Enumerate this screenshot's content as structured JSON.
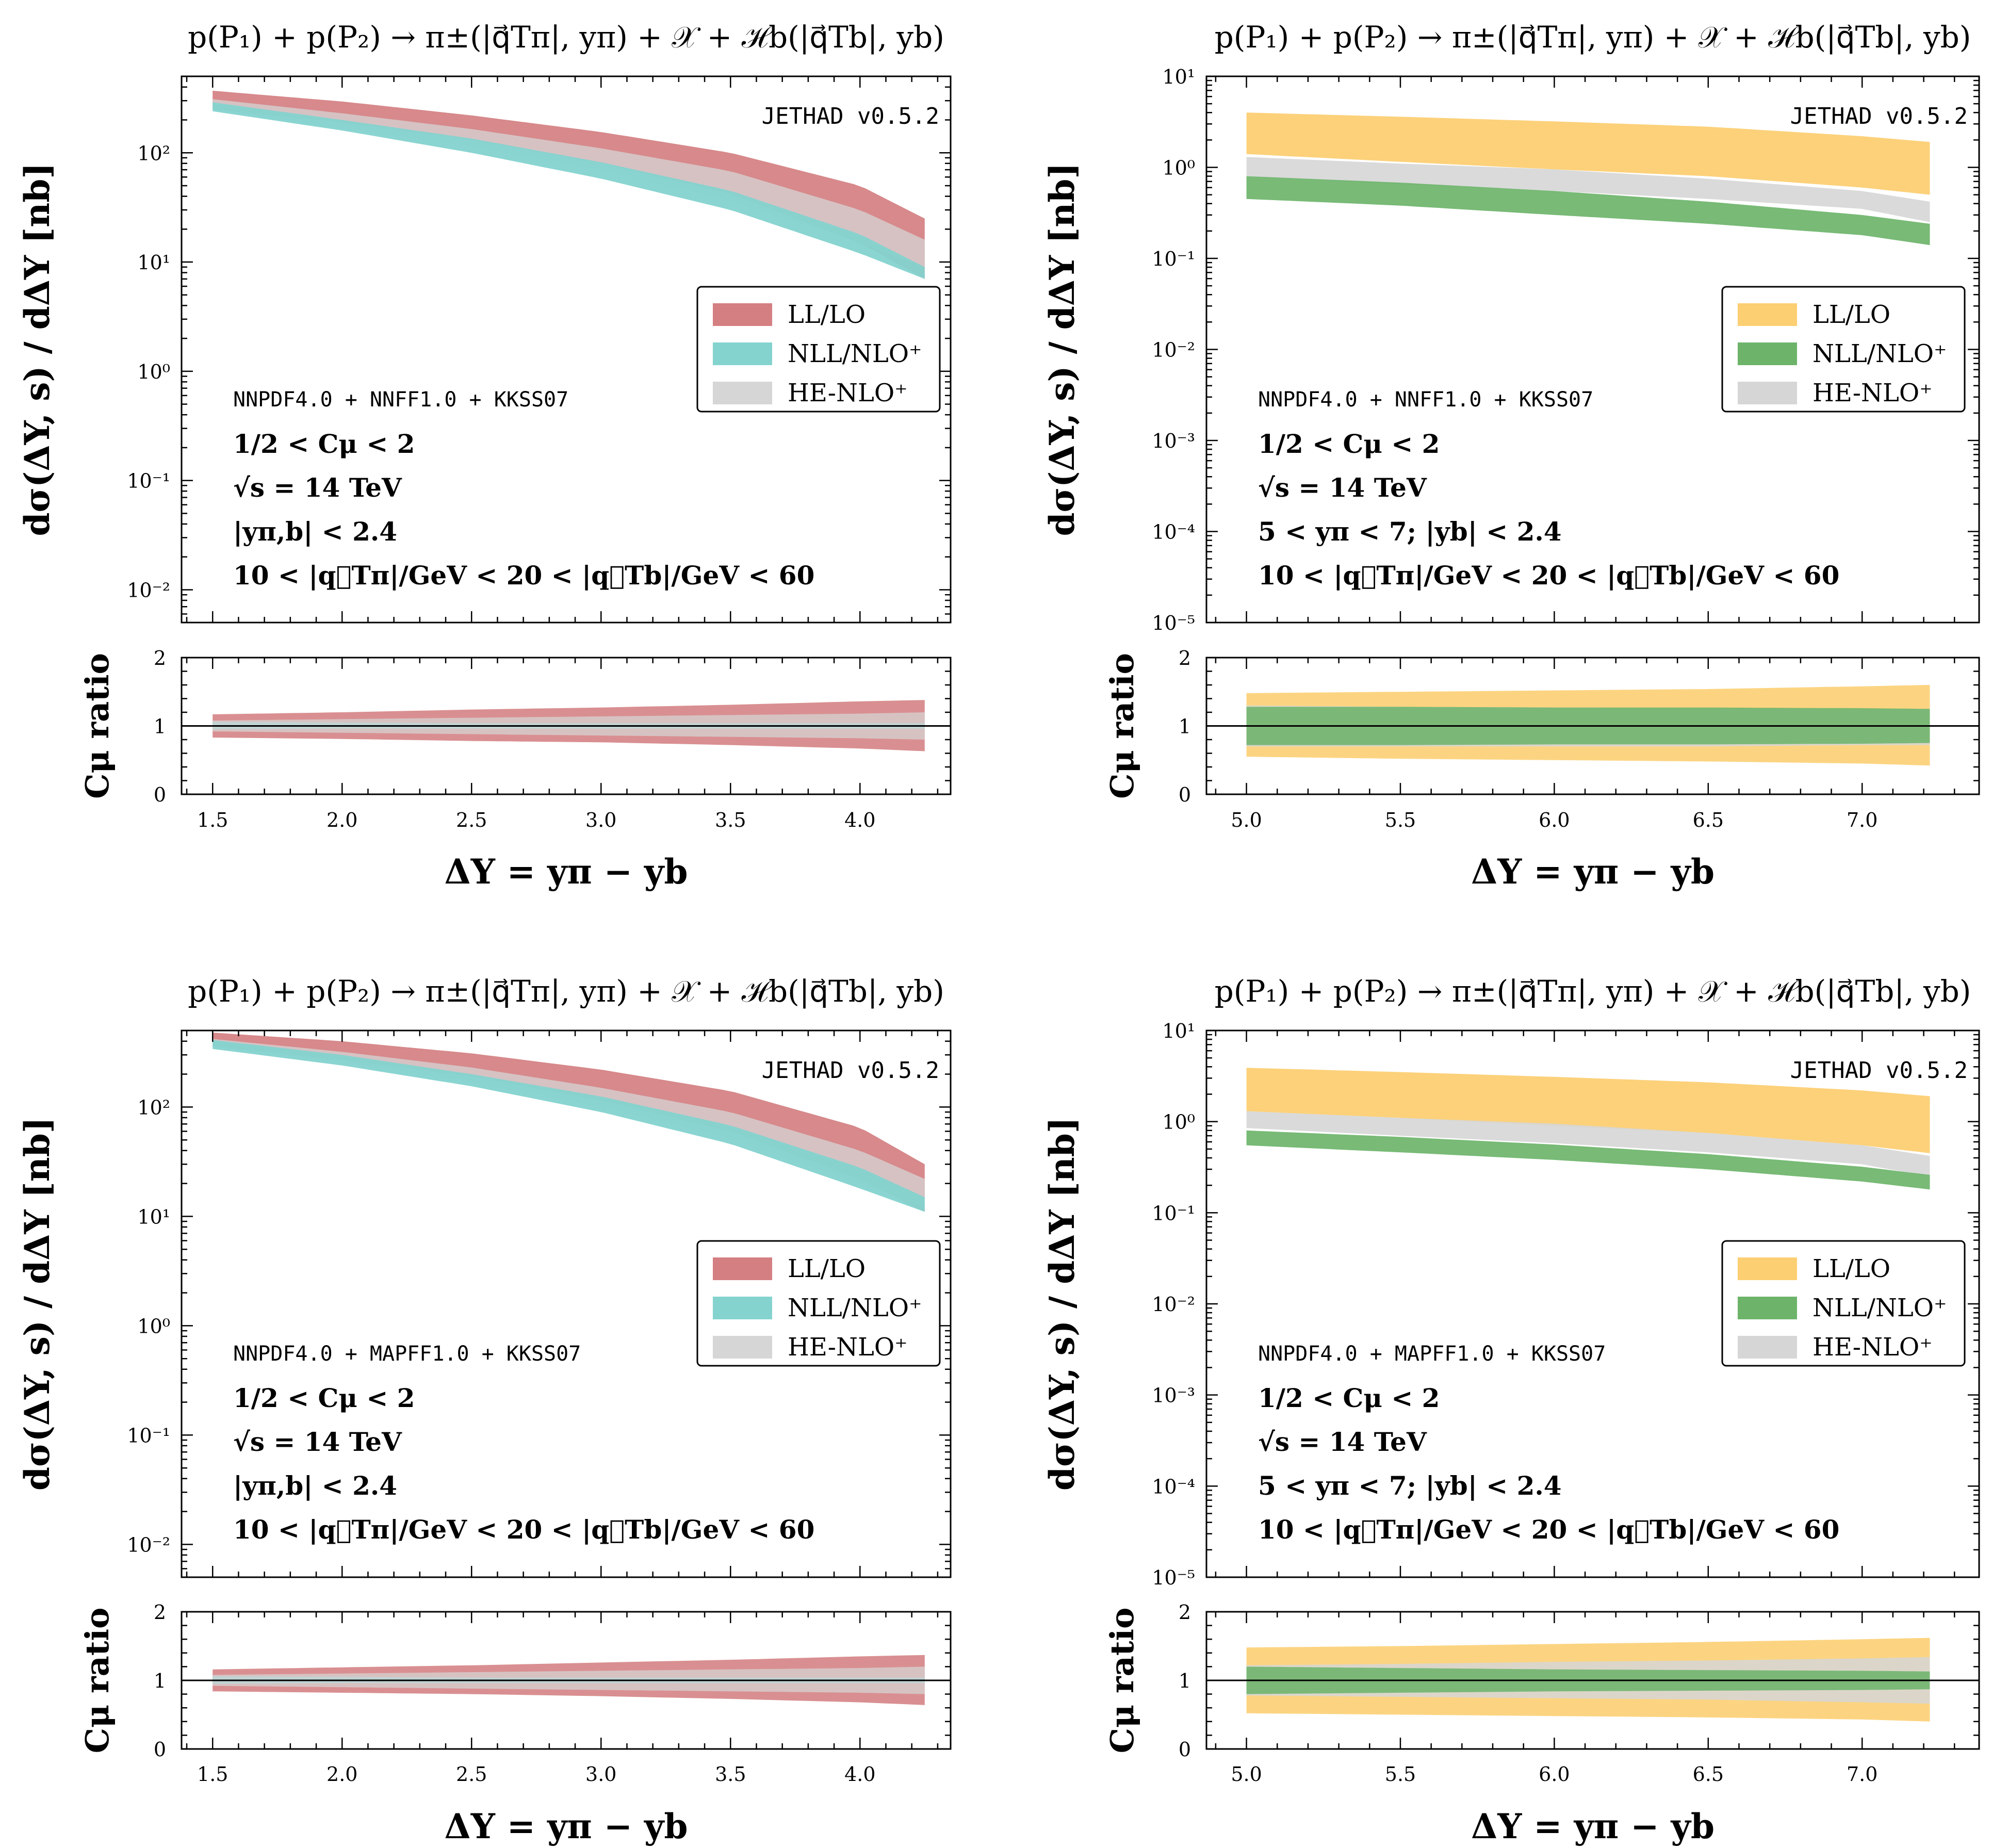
{
  "figure": {
    "panels": [
      {
        "id": "tl",
        "title": "p(P₁) + p(P₂) → π±(|q⃗Tπ|, yπ) + 𝒳 + ℋb(|q⃗Tb|, yb)",
        "watermark": "JETHAD v0.5.2",
        "pdf_label": "NNPDF4.0 + NNFF1.0 + KKSS07",
        "cuts": [
          "1/2 < Cμ < 2",
          "√s = 14 TeV",
          "|yπ,b| < 2.4",
          "10 < |q⃗Tπ|/GeV < 20 < |q⃗Tb|/GeV < 60"
        ],
        "ylabel_main": "dσ(ΔY, s) / dΔY [nb]",
        "ylabel_ratio": "Cμ ratio",
        "xlabel": "ΔY = yπ − yb",
        "legend": [
          "LL/LO",
          "NLL/NLO⁺",
          "HE-NLO⁺"
        ],
        "ytick_labels": [
          "10⁻²",
          "10⁻¹",
          "10⁰",
          "10¹",
          "10²"
        ],
        "ratio_tick_labels": [
          "0",
          "1",
          "2"
        ],
        "xtick_labels": [
          "1.5",
          "2.0",
          "2.5",
          "3.0",
          "3.5",
          "4.0"
        ]
      },
      {
        "id": "tr",
        "title": "p(P₁) + p(P₂) → π±(|q⃗Tπ|, yπ) + 𝒳 + ℋb(|q⃗Tb|, yb)",
        "watermark": "JETHAD v0.5.2",
        "pdf_label": "NNPDF4.0 + NNFF1.0 + KKSS07",
        "cuts": [
          "1/2 < Cμ < 2",
          "√s = 14 TeV",
          "5 < yπ < 7;  |yb| < 2.4",
          "10 < |q⃗Tπ|/GeV < 20 < |q⃗Tb|/GeV < 60"
        ],
        "ylabel_main": "dσ(ΔY, s) / dΔY [nb]",
        "ylabel_ratio": "Cμ ratio",
        "xlabel": "ΔY = yπ − yb",
        "legend": [
          "LL/LO",
          "NLL/NLO⁺",
          "HE-NLO⁺"
        ],
        "ytick_labels": [
          "10⁻⁵",
          "10⁻⁴",
          "10⁻³",
          "10⁻²",
          "10⁻¹",
          "10⁰",
          "10¹"
        ],
        "ratio_tick_labels": [
          "0",
          "1",
          "2"
        ],
        "xtick_labels": [
          "5.0",
          "5.5",
          "6.0",
          "6.5",
          "7.0"
        ]
      },
      {
        "id": "bl",
        "title": "p(P₁) + p(P₂) → π±(|q⃗Tπ|, yπ) + 𝒳 + ℋb(|q⃗Tb|, yb)",
        "watermark": "JETHAD v0.5.2",
        "pdf_label": "NNPDF4.0 + MAPFF1.0 + KKSS07",
        "cuts": [
          "1/2 < Cμ < 2",
          "√s = 14 TeV",
          "|yπ,b| < 2.4",
          "10 < |q⃗Tπ|/GeV < 20 < |q⃗Tb|/GeV < 60"
        ],
        "ylabel_main": "dσ(ΔY, s) / dΔY [nb]",
        "ylabel_ratio": "Cμ ratio",
        "xlabel": "ΔY = yπ − yb",
        "legend": [
          "LL/LO",
          "NLL/NLO⁺",
          "HE-NLO⁺"
        ],
        "ytick_labels": [
          "10⁻²",
          "10⁻¹",
          "10⁰",
          "10¹",
          "10²"
        ],
        "ratio_tick_labels": [
          "0",
          "1",
          "2"
        ],
        "xtick_labels": [
          "1.5",
          "2.0",
          "2.5",
          "3.0",
          "3.5",
          "4.0"
        ]
      },
      {
        "id": "br",
        "title": "p(P₁) + p(P₂) → π±(|q⃗Tπ|, yπ) + 𝒳 + ℋb(|q⃗Tb|, yb)",
        "watermark": "JETHAD v0.5.2",
        "pdf_label": "NNPDF4.0 + MAPFF1.0 + KKSS07",
        "cuts": [
          "1/2 < Cμ < 2",
          "√s = 14 TeV",
          "5 < yπ < 7;  |yb| < 2.4",
          "10 < |q⃗Tπ|/GeV < 20 < |q⃗Tb|/GeV < 60"
        ],
        "ylabel_main": "dσ(ΔY, s) / dΔY [nb]",
        "ylabel_ratio": "Cμ ratio",
        "xlabel": "ΔY = yπ − yb",
        "legend": [
          "LL/LO",
          "NLL/NLO⁺",
          "HE-NLO⁺"
        ],
        "ytick_labels": [
          "10⁻⁵",
          "10⁻⁴",
          "10⁻³",
          "10⁻²",
          "10⁻¹",
          "10⁰",
          "10¹"
        ],
        "ratio_tick_labels": [
          "0",
          "1",
          "2"
        ],
        "xtick_labels": [
          "5.0",
          "5.5",
          "6.0",
          "6.5",
          "7.0"
        ]
      }
    ],
    "colors": {
      "ll_left": "#d47f81",
      "ll_left_dark": "#b86a6d",
      "nll_left": "#84d3cf",
      "ll_right": "#fccf73",
      "nll_right": "#6db46a",
      "he": "#d6d6d6"
    }
  },
  "chart_data": [
    {
      "type": "area",
      "panel": "tl",
      "x": [
        1.5,
        2.0,
        2.5,
        3.0,
        3.5,
        4.0,
        4.25
      ],
      "xlim": [
        1.38,
        4.35
      ],
      "ylim_log10": [
        -2.3,
        2.7
      ],
      "ratio_ylim": [
        0,
        2
      ],
      "series": [
        {
          "name": "LL/LO",
          "lower": [
            250,
            190,
            130,
            80,
            42,
            15,
            7
          ],
          "upper": [
            370,
            295,
            220,
            155,
            100,
            50,
            25
          ]
        },
        {
          "name": "HE-NLO⁺",
          "lower": [
            250,
            170,
            115,
            70,
            36,
            15,
            9
          ],
          "upper": [
            310,
            230,
            165,
            110,
            68,
            30,
            16
          ]
        },
        {
          "name": "NLL/NLO⁺",
          "lower": [
            240,
            160,
            100,
            58,
            30,
            12,
            7
          ],
          "upper": [
            290,
            200,
            135,
            82,
            45,
            18,
            9
          ]
        }
      ],
      "ratio_series": [
        {
          "name": "LL/LO",
          "lower": [
            0.83,
            0.81,
            0.78,
            0.76,
            0.72,
            0.67,
            0.63
          ],
          "upper": [
            1.17,
            1.2,
            1.24,
            1.27,
            1.31,
            1.36,
            1.38
          ]
        },
        {
          "name": "NLL/NLO⁺",
          "lower": [
            0.95,
            0.96,
            0.96,
            0.96,
            0.96,
            0.96,
            0.96
          ],
          "upper": [
            1.06,
            1.05,
            1.04,
            1.04,
            1.04,
            1.04,
            1.04
          ]
        },
        {
          "name": "HE-NLO⁺",
          "lower": [
            0.92,
            0.9,
            0.88,
            0.86,
            0.84,
            0.82,
            0.8
          ],
          "upper": [
            1.08,
            1.1,
            1.12,
            1.14,
            1.16,
            1.18,
            1.2
          ]
        }
      ]
    },
    {
      "type": "area",
      "panel": "tr",
      "x": [
        5.0,
        5.5,
        6.0,
        6.5,
        7.0,
        7.22
      ],
      "xlim": [
        4.87,
        7.38
      ],
      "ylim_log10": [
        -5,
        1
      ],
      "ratio_ylim": [
        0,
        2
      ],
      "series": [
        {
          "name": "LL/LO",
          "lower": [
            1.4,
            1.15,
            0.95,
            0.8,
            0.6,
            0.5
          ],
          "upper": [
            4.0,
            3.6,
            3.2,
            2.8,
            2.2,
            1.9
          ]
        },
        {
          "name": "HE-NLO⁺",
          "lower": [
            0.8,
            0.65,
            0.55,
            0.45,
            0.35,
            0.25
          ],
          "upper": [
            1.3,
            1.1,
            0.95,
            0.75,
            0.55,
            0.42
          ]
        },
        {
          "name": "NLL/NLO⁺",
          "lower": [
            0.45,
            0.38,
            0.3,
            0.24,
            0.18,
            0.14
          ],
          "upper": [
            0.8,
            0.68,
            0.55,
            0.42,
            0.3,
            0.24
          ]
        }
      ],
      "ratio_series": [
        {
          "name": "LL/LO",
          "lower": [
            0.55,
            0.52,
            0.5,
            0.48,
            0.45,
            0.42
          ],
          "upper": [
            1.48,
            1.5,
            1.52,
            1.54,
            1.58,
            1.6
          ]
        },
        {
          "name": "HE-NLO⁺",
          "lower": [
            0.7,
            0.7,
            0.7,
            0.7,
            0.72,
            0.72
          ],
          "upper": [
            1.3,
            1.28,
            1.27,
            1.26,
            1.25,
            1.25
          ]
        },
        {
          "name": "NLL/NLO⁺",
          "lower": [
            0.72,
            0.72,
            0.73,
            0.73,
            0.74,
            0.75
          ],
          "upper": [
            1.28,
            1.28,
            1.27,
            1.27,
            1.26,
            1.25
          ]
        }
      ]
    },
    {
      "type": "area",
      "panel": "bl",
      "x": [
        1.5,
        2.0,
        2.5,
        3.0,
        3.5,
        4.0,
        4.25
      ],
      "xlim": [
        1.38,
        4.35
      ],
      "ylim_log10": [
        -2.3,
        2.7
      ],
      "ratio_ylim": [
        0,
        2
      ],
      "series": [
        {
          "name": "LL/LO",
          "lower": [
            360,
            270,
            190,
            115,
            60,
            22,
            11
          ],
          "upper": [
            480,
            400,
            310,
            220,
            140,
            65,
            30
          ]
        },
        {
          "name": "HE-NLO⁺",
          "lower": [
            360,
            260,
            170,
            100,
            52,
            20,
            12
          ],
          "upper": [
            420,
            320,
            230,
            150,
            90,
            40,
            22
          ]
        },
        {
          "name": "NLL/NLO⁺",
          "lower": [
            340,
            240,
            155,
            90,
            46,
            18,
            11
          ],
          "upper": [
            410,
            300,
            200,
            125,
            68,
            28,
            15
          ]
        }
      ],
      "ratio_series": [
        {
          "name": "LL/LO",
          "lower": [
            0.84,
            0.82,
            0.8,
            0.77,
            0.73,
            0.68,
            0.64
          ],
          "upper": [
            1.16,
            1.19,
            1.22,
            1.26,
            1.3,
            1.35,
            1.37
          ]
        },
        {
          "name": "NLL/NLO⁺",
          "lower": [
            0.95,
            0.96,
            0.96,
            0.96,
            0.96,
            0.96,
            0.96
          ],
          "upper": [
            1.06,
            1.05,
            1.04,
            1.04,
            1.04,
            1.04,
            1.04
          ]
        },
        {
          "name": "HE-NLO⁺",
          "lower": [
            0.92,
            0.9,
            0.88,
            0.86,
            0.84,
            0.82,
            0.8
          ],
          "upper": [
            1.08,
            1.1,
            1.12,
            1.14,
            1.16,
            1.18,
            1.2
          ]
        }
      ]
    },
    {
      "type": "area",
      "panel": "br",
      "x": [
        5.0,
        5.5,
        6.0,
        6.5,
        7.0,
        7.22
      ],
      "xlim": [
        4.87,
        7.38
      ],
      "ylim_log10": [
        -5,
        1
      ],
      "ratio_ylim": [
        0,
        2
      ],
      "series": [
        {
          "name": "LL/LO",
          "lower": [
            1.3,
            1.1,
            0.9,
            0.75,
            0.55,
            0.45
          ],
          "upper": [
            3.9,
            3.5,
            3.1,
            2.7,
            2.2,
            1.9
          ]
        },
        {
          "name": "HE-NLO⁺",
          "lower": [
            0.85,
            0.7,
            0.58,
            0.46,
            0.34,
            0.25
          ],
          "upper": [
            1.3,
            1.1,
            0.95,
            0.75,
            0.55,
            0.42
          ]
        },
        {
          "name": "NLL/NLO⁺",
          "lower": [
            0.55,
            0.46,
            0.38,
            0.3,
            0.22,
            0.18
          ],
          "upper": [
            0.8,
            0.68,
            0.56,
            0.44,
            0.32,
            0.26
          ]
        }
      ],
      "ratio_series": [
        {
          "name": "LL/LO",
          "lower": [
            0.52,
            0.5,
            0.48,
            0.46,
            0.43,
            0.4
          ],
          "upper": [
            1.48,
            1.5,
            1.53,
            1.56,
            1.6,
            1.62
          ]
        },
        {
          "name": "HE-NLO⁺",
          "lower": [
            0.78,
            0.76,
            0.74,
            0.72,
            0.68,
            0.66
          ],
          "upper": [
            1.22,
            1.24,
            1.27,
            1.29,
            1.32,
            1.34
          ]
        },
        {
          "name": "NLL/NLO⁺",
          "lower": [
            0.8,
            0.82,
            0.84,
            0.85,
            0.86,
            0.87
          ],
          "upper": [
            1.2,
            1.18,
            1.16,
            1.15,
            1.14,
            1.13
          ]
        }
      ]
    }
  ]
}
